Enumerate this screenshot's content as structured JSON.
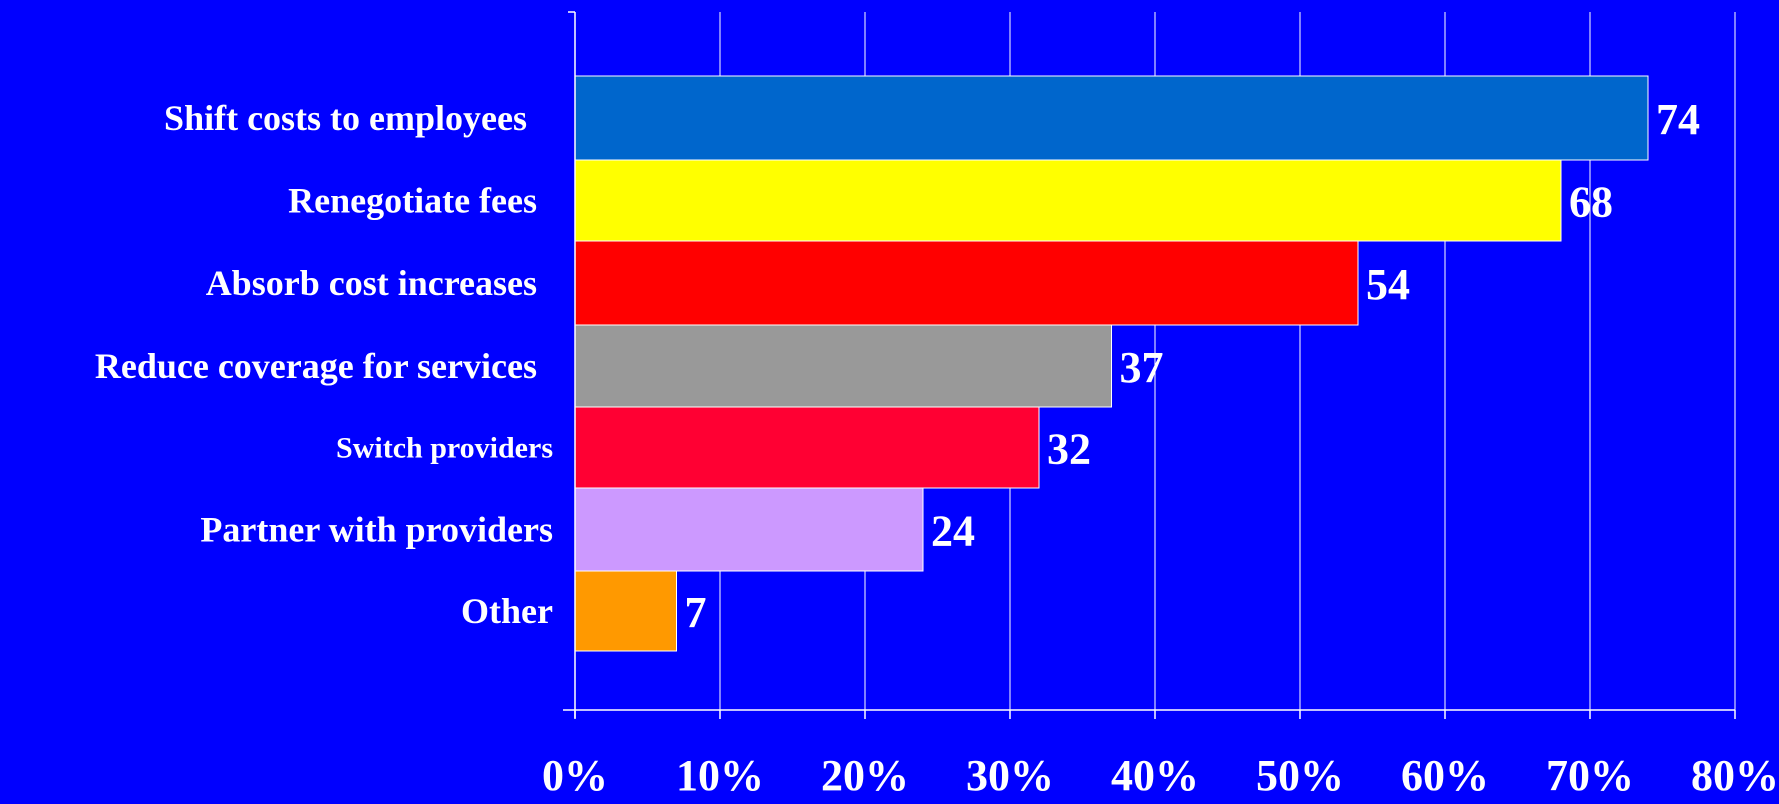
{
  "chart_data": {
    "type": "bar",
    "orientation": "horizontal",
    "categories": [
      "Shift costs to employees",
      "Renegotiate fees",
      "Absorb cost increases",
      "Reduce coverage for services",
      "Switch providers",
      "Partner with providers",
      "Other"
    ],
    "values": [
      74,
      68,
      54,
      37,
      32,
      24,
      7
    ],
    "data_labels": [
      "74",
      "68",
      "54",
      "37",
      "32",
      "24",
      "7"
    ],
    "bar_colors": [
      "#0066cc",
      "#ffff00",
      "#ff0000",
      "#999999",
      "#ff0033",
      "#cc99ff",
      "#ff9900"
    ],
    "x_ticks": [
      0,
      10,
      20,
      30,
      40,
      50,
      60,
      70,
      80
    ],
    "x_tick_labels": [
      "0%",
      "10%",
      "20%",
      "30%",
      "40%",
      "50%",
      "60%",
      "70%",
      "80%"
    ],
    "xlim": [
      0,
      80
    ],
    "grid": true,
    "legend": "none",
    "title": "",
    "xlabel": "",
    "ylabel": ""
  },
  "colors": {
    "background": "#0000ff",
    "text": "#ffffff",
    "gridline": "#ffffff"
  }
}
